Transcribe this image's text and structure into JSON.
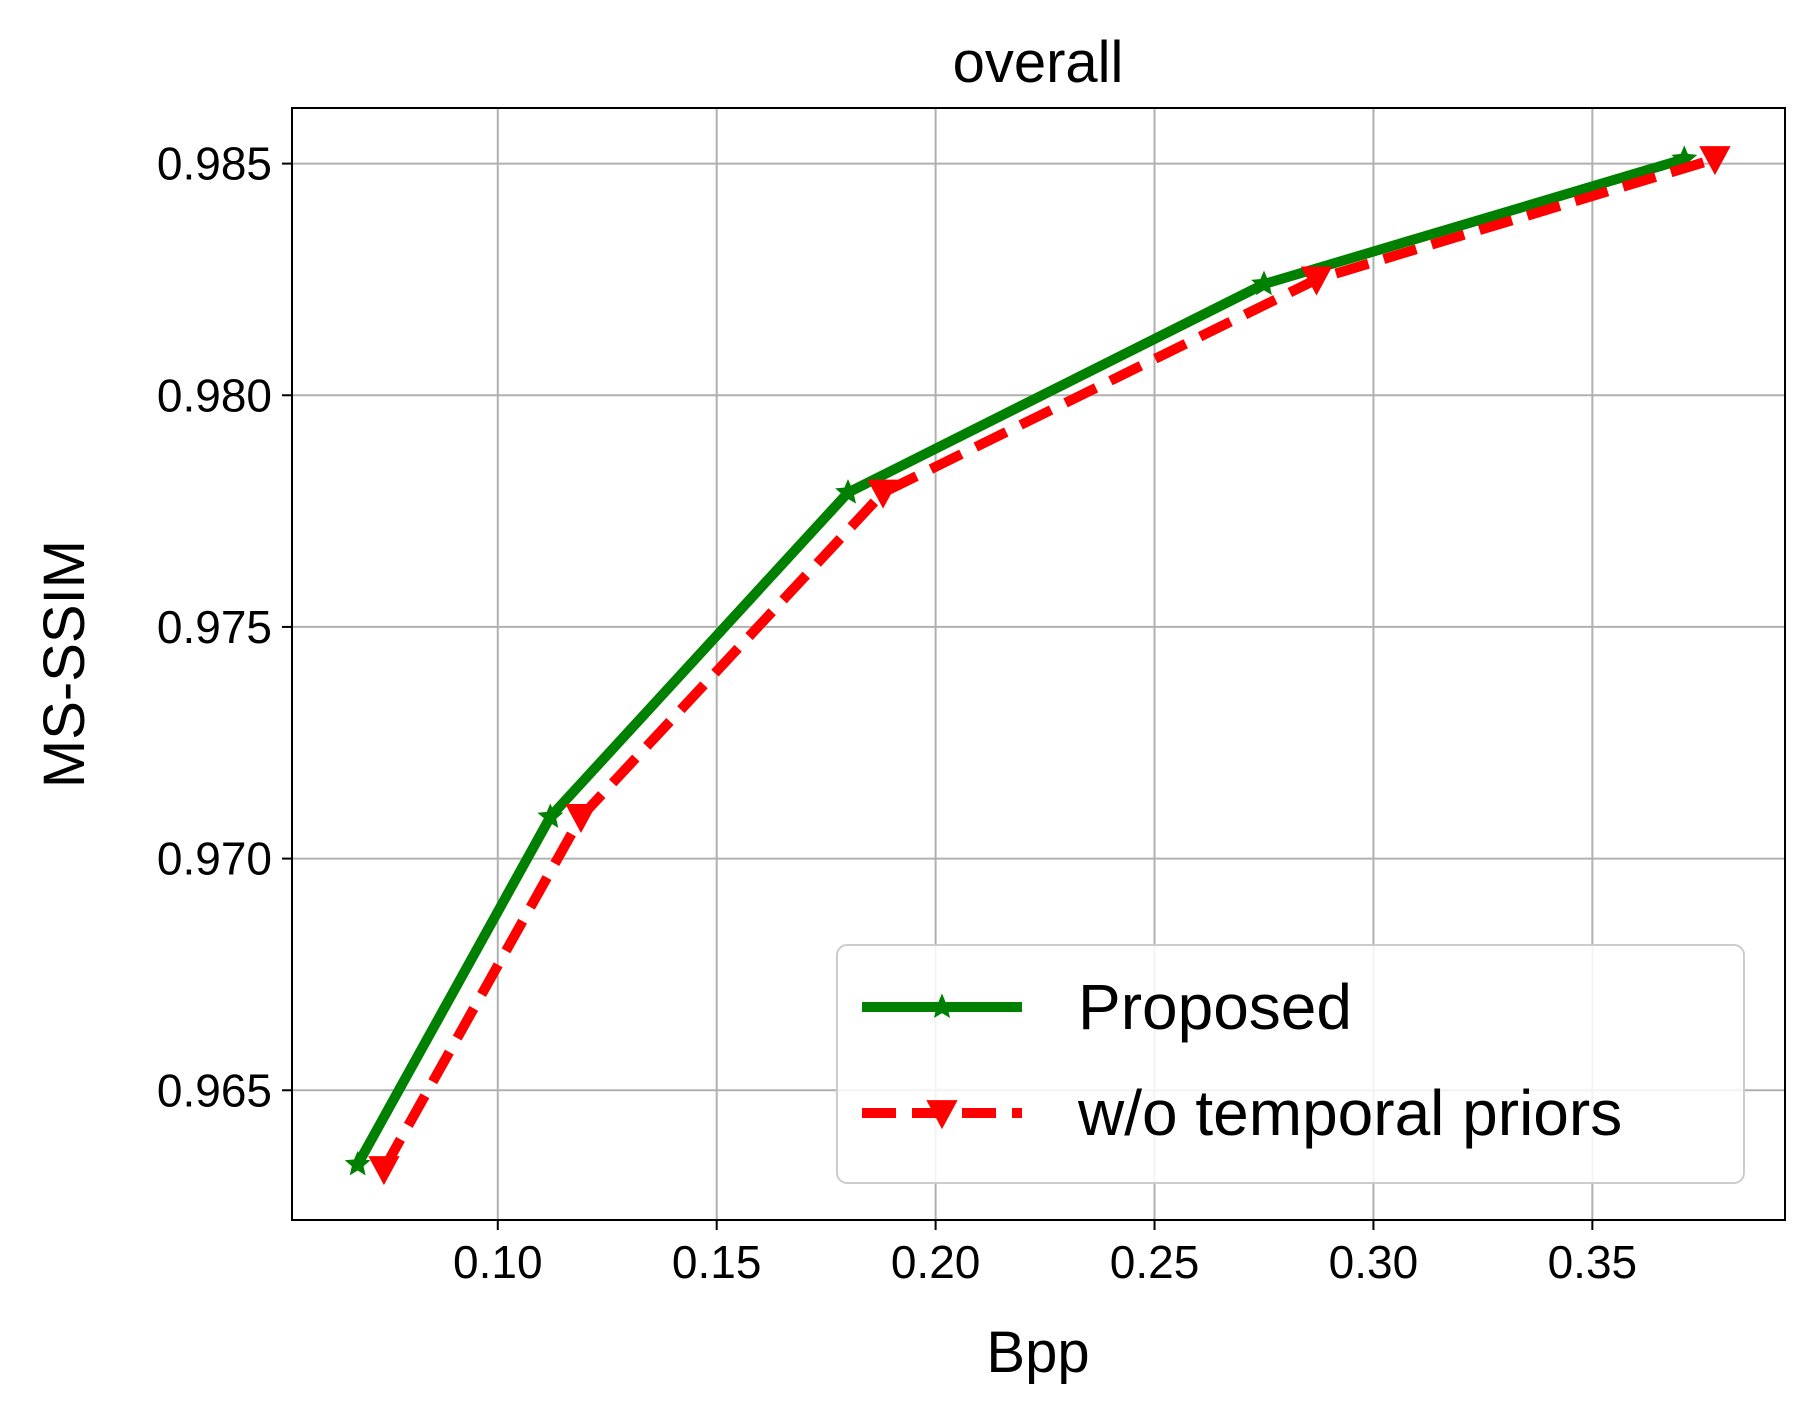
{
  "chart_data": {
    "type": "line",
    "title": "overall",
    "xlabel": "Bpp",
    "ylabel": "MS-SSIM",
    "xlim": [
      0.053,
      0.394
    ],
    "ylim": [
      0.9622,
      0.9862
    ],
    "xticks": [
      0.1,
      0.15,
      0.2,
      0.25,
      0.3,
      0.35
    ],
    "xtick_labels": [
      "0.10",
      "0.15",
      "0.20",
      "0.25",
      "0.30",
      "0.35"
    ],
    "yticks": [
      0.965,
      0.97,
      0.975,
      0.98,
      0.985
    ],
    "ytick_labels": [
      "0.965",
      "0.970",
      "0.975",
      "0.980",
      "0.985"
    ],
    "grid": true,
    "legend_position": "lower-right",
    "series": [
      {
        "name": "Proposed",
        "color": "#008000",
        "linestyle": "solid",
        "marker": "star",
        "x": [
          0.068,
          0.112,
          0.18,
          0.275,
          0.371
        ],
        "y": [
          0.9634,
          0.9709,
          0.9779,
          0.9824,
          0.9851
        ]
      },
      {
        "name": "w/o temporal priors",
        "color": "#ff0000",
        "linestyle": "dashed",
        "marker": "triangle-down",
        "x": [
          0.074,
          0.119,
          0.188,
          0.287,
          0.378
        ],
        "y": [
          0.9633,
          0.9709,
          0.9779,
          0.9825,
          0.9851
        ]
      }
    ]
  }
}
